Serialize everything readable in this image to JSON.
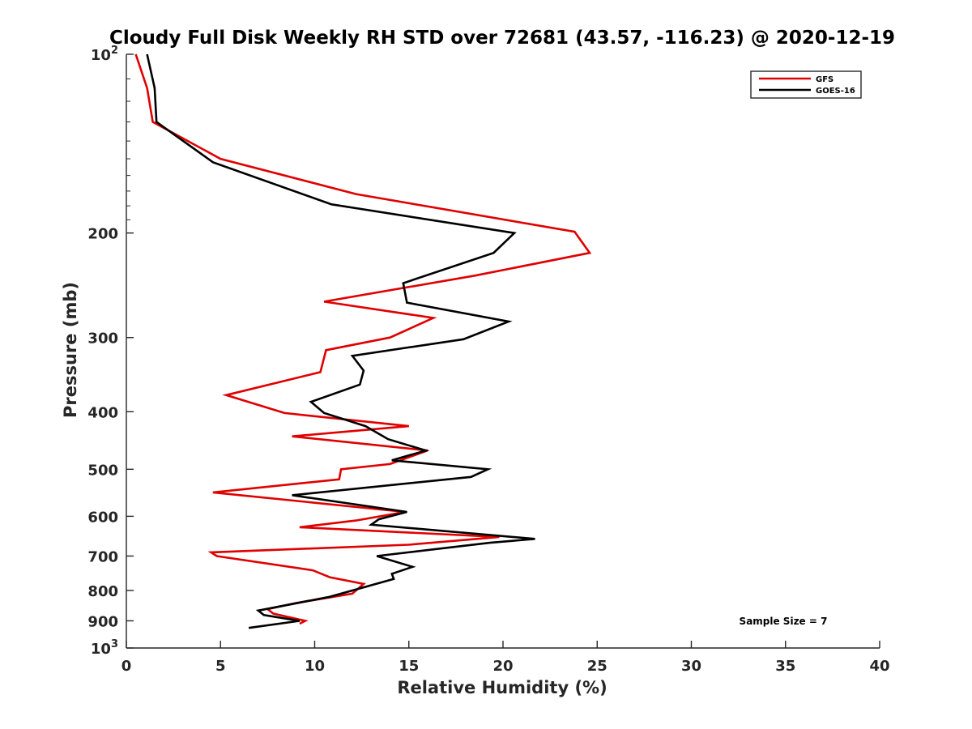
{
  "chart_data": {
    "type": "line",
    "title": "Cloudy Full Disk Weekly RH STD over 72681 (43.57, -116.23) @ 2020-12-19",
    "xlabel": "Relative Humidity (%)",
    "ylabel": "Pressure (mb)",
    "xlim": [
      0,
      40
    ],
    "ylim": [
      100,
      1000
    ],
    "y_scale": "log",
    "y_reversed": true,
    "x_ticks": [
      0,
      5,
      10,
      15,
      20,
      25,
      30,
      35,
      40
    ],
    "y_ticks": [
      {
        "value": 100,
        "base": "10",
        "exp": "2"
      },
      {
        "value": 200,
        "label": "200"
      },
      {
        "value": 300,
        "label": "300"
      },
      {
        "value": 400,
        "label": "400"
      },
      {
        "value": 500,
        "label": "500"
      },
      {
        "value": 600,
        "label": "600"
      },
      {
        "value": 700,
        "label": "700"
      },
      {
        "value": 800,
        "label": "800"
      },
      {
        "value": 900,
        "label": "900"
      },
      {
        "value": 1000,
        "base": "10",
        "exp": "3"
      }
    ],
    "grid": false,
    "legend_position": "top-right",
    "series": [
      {
        "name": "GFS",
        "color": "#e00000",
        "points": [
          [
            0.5,
            100
          ],
          [
            1.1,
            114
          ],
          [
            1.4,
            130
          ],
          [
            5.0,
            150
          ],
          [
            12.2,
            172
          ],
          [
            23.8,
            199
          ],
          [
            24.6,
            216
          ],
          [
            18.5,
            236
          ],
          [
            10.5,
            261
          ],
          [
            16.3,
            278
          ],
          [
            14.0,
            300
          ],
          [
            10.6,
            315
          ],
          [
            10.3,
            343
          ],
          [
            5.3,
            375
          ],
          [
            8.4,
            402
          ],
          [
            15.0,
            423
          ],
          [
            8.8,
            440
          ],
          [
            16.0,
            465
          ],
          [
            14.0,
            490
          ],
          [
            11.4,
            500
          ],
          [
            11.3,
            520
          ],
          [
            4.6,
            547
          ],
          [
            14.8,
            590
          ],
          [
            12.2,
            610
          ],
          [
            9.2,
            626
          ],
          [
            19.8,
            650
          ],
          [
            15.0,
            670
          ],
          [
            4.5,
            690
          ],
          [
            4.8,
            700
          ],
          [
            9.9,
            740
          ],
          [
            10.8,
            760
          ],
          [
            12.6,
            780
          ],
          [
            12.0,
            810
          ],
          [
            9.0,
            840
          ],
          [
            7.5,
            860
          ],
          [
            7.8,
            875
          ],
          [
            9.5,
            900
          ],
          [
            9.2,
            910
          ]
        ]
      },
      {
        "name": "GOES-16",
        "color": "#000000",
        "points": [
          [
            1.1,
            100
          ],
          [
            1.5,
            114
          ],
          [
            1.6,
            130
          ],
          [
            4.6,
            152
          ],
          [
            10.9,
            179
          ],
          [
            20.6,
            200
          ],
          [
            19.5,
            216
          ],
          [
            14.7,
            243
          ],
          [
            14.9,
            262
          ],
          [
            20.3,
            282
          ],
          [
            17.9,
            302
          ],
          [
            12.0,
            322
          ],
          [
            12.6,
            341
          ],
          [
            12.4,
            360
          ],
          [
            9.8,
            385
          ],
          [
            10.5,
            402
          ],
          [
            12.7,
            423
          ],
          [
            13.9,
            445
          ],
          [
            15.9,
            465
          ],
          [
            14.1,
            483
          ],
          [
            19.2,
            500
          ],
          [
            18.3,
            515
          ],
          [
            8.8,
            553
          ],
          [
            14.9,
            590
          ],
          [
            13.4,
            607
          ],
          [
            13.0,
            620
          ],
          [
            21.7,
            655
          ],
          [
            19.3,
            665
          ],
          [
            13.3,
            700
          ],
          [
            15.2,
            730
          ],
          [
            14.1,
            750
          ],
          [
            14.2,
            765
          ],
          [
            10.8,
            820
          ],
          [
            7.0,
            865
          ],
          [
            7.3,
            880
          ],
          [
            9.2,
            900
          ],
          [
            6.5,
            925
          ]
        ]
      }
    ],
    "annotation": "Sample Size = 7"
  }
}
